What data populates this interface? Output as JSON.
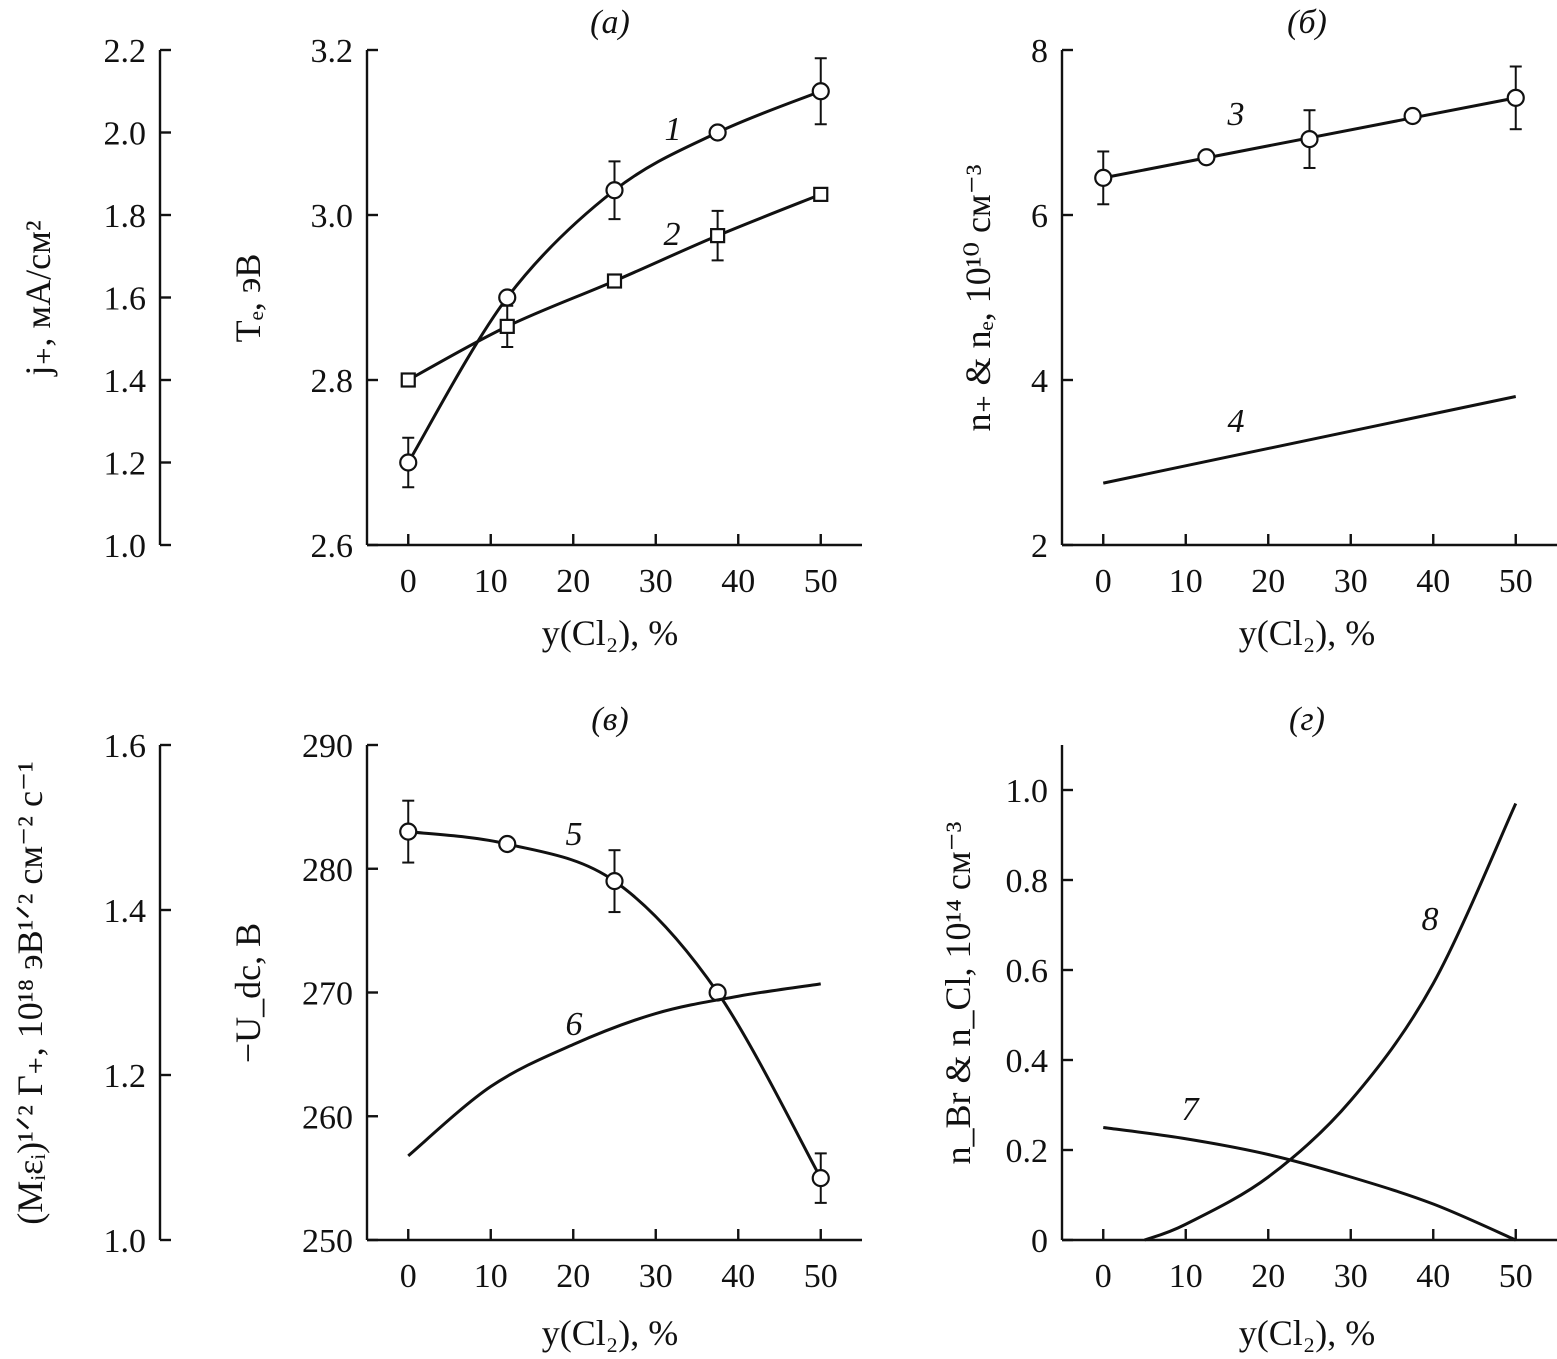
{
  "x_axis_label": "y(Cl₂), %",
  "chart_data": [
    {
      "id": "a",
      "type": "line",
      "title": "(а)",
      "xlabel": "y(Cl₂), %",
      "x_ticks": [
        0,
        10,
        20,
        30,
        40,
        50
      ],
      "xlim": [
        -5,
        55
      ],
      "ylabel": "Tₑ, эВ",
      "ylim": [
        2.6,
        3.2
      ],
      "y_ticks": [
        "2.6",
        "2.8",
        "3.0",
        "3.2"
      ],
      "secondary_axis": {
        "ylabel": "j₊, мА/см²",
        "ylim": [
          1.0,
          2.2
        ],
        "y_ticks": [
          "1.0",
          "1.2",
          "1.4",
          "1.6",
          "1.8",
          "2.0",
          "2.2"
        ]
      },
      "series": [
        {
          "name": "1",
          "marker": "circle",
          "x": [
            0,
            12,
            25,
            37.5,
            50
          ],
          "y": [
            2.7,
            2.9,
            3.03,
            3.1,
            3.15
          ],
          "yerr": [
            0.03,
            0,
            0.035,
            0,
            0.04
          ],
          "fit": "smooth"
        },
        {
          "name": "2",
          "marker": "square",
          "x": [
            0,
            12,
            25,
            37.5,
            50
          ],
          "y": [
            2.8,
            2.865,
            2.92,
            2.975,
            3.025
          ],
          "yerr": [
            0,
            0.025,
            0,
            0.03,
            0
          ],
          "fit": "smooth"
        }
      ]
    },
    {
      "id": "b",
      "type": "line",
      "title": "(б)",
      "xlabel": "y(Cl₂), %",
      "x_ticks": [
        0,
        10,
        20,
        30,
        40,
        50
      ],
      "xlim": [
        -5,
        55
      ],
      "ylabel": "n₊ & nₑ, 10¹⁰ см⁻³",
      "ylim": [
        2,
        8
      ],
      "y_ticks": [
        "2",
        "4",
        "6",
        "8"
      ],
      "series": [
        {
          "name": "3",
          "marker": "circle",
          "x": [
            0,
            12.5,
            25,
            37.5,
            50
          ],
          "y": [
            6.45,
            6.7,
            6.92,
            7.2,
            7.42
          ],
          "yerr": [
            0.32,
            0,
            0.35,
            0,
            0.38
          ],
          "fit": "linear"
        },
        {
          "name": "4",
          "marker": "none",
          "x": [
            0,
            50
          ],
          "y": [
            2.75,
            3.8
          ]
        }
      ]
    },
    {
      "id": "v",
      "type": "line",
      "title": "(в)",
      "xlabel": "y(Cl₂), %",
      "x_ticks": [
        0,
        10,
        20,
        30,
        40,
        50
      ],
      "xlim": [
        -5,
        55
      ],
      "ylabel": "−U_dc, В",
      "ylim": [
        250,
        290
      ],
      "y_ticks": [
        "250",
        "260",
        "270",
        "280",
        "290"
      ],
      "secondary_axis": {
        "ylabel": "(Mᵢεᵢ)¹ᐟ² Γ₊, 10¹⁸ эВ¹ᐟ² см⁻² с⁻¹",
        "ylim": [
          1.0,
          1.6
        ],
        "y_ticks": [
          "1.0",
          "1.2",
          "1.4",
          "1.6"
        ]
      },
      "series": [
        {
          "name": "5",
          "marker": "circle",
          "x": [
            0,
            12,
            25,
            37.5,
            50
          ],
          "y": [
            283,
            282,
            279,
            270,
            255
          ],
          "yerr": [
            2.5,
            0,
            2.5,
            0,
            2
          ],
          "fit": "smooth"
        },
        {
          "name": "6",
          "marker": "none",
          "x": [
            0,
            10,
            20,
            30,
            40,
            50
          ],
          "y": [
            256.8,
            262.4,
            265.8,
            268.3,
            269.7,
            270.7
          ]
        }
      ]
    },
    {
      "id": "g",
      "type": "line",
      "title": "(г)",
      "xlabel": "y(Cl₂), %",
      "x_ticks": [
        0,
        10,
        20,
        30,
        40,
        50
      ],
      "xlim": [
        -5,
        55
      ],
      "ylabel": "n_Br & n_Cl, 10¹⁴ см⁻³",
      "ylim": [
        0,
        1.1
      ],
      "y_ticks": [
        "0",
        "0.2",
        "0.4",
        "0.6",
        "0.8",
        "1.0"
      ],
      "series": [
        {
          "name": "7",
          "marker": "none",
          "x": [
            0,
            10,
            20,
            30,
            40,
            50
          ],
          "y": [
            0.25,
            0.225,
            0.19,
            0.14,
            0.08,
            0.0
          ]
        },
        {
          "name": "8",
          "marker": "none",
          "x": [
            5,
            10,
            20,
            30,
            40,
            50
          ],
          "y": [
            0.0,
            0.035,
            0.14,
            0.31,
            0.57,
            0.97
          ]
        }
      ]
    }
  ]
}
